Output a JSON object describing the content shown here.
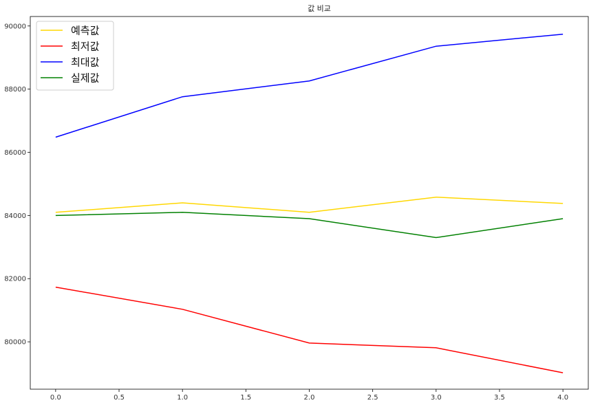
{
  "chart_data": {
    "type": "line",
    "title": "값 비교",
    "xlabel": "",
    "ylabel": "",
    "x": [
      0,
      1,
      2,
      3,
      4
    ],
    "xlim": [
      -0.2,
      4.2
    ],
    "ylim": [
      78500,
      90300
    ],
    "x_ticks": [
      0.0,
      0.5,
      1.0,
      1.5,
      2.0,
      2.5,
      3.0,
      3.5,
      4.0
    ],
    "x_tick_labels": [
      "0.0",
      "0.5",
      "1.0",
      "1.5",
      "2.0",
      "2.5",
      "3.0",
      "3.5",
      "4.0"
    ],
    "y_ticks": [
      80000,
      82000,
      84000,
      86000,
      88000,
      90000
    ],
    "y_tick_labels": [
      "80000",
      "82000",
      "84000",
      "86000",
      "88000",
      "90000"
    ],
    "grid": false,
    "legend_position": "top-left",
    "series": [
      {
        "name": "예측값",
        "color": "#ffd700",
        "values": [
          84100,
          84400,
          84100,
          84580,
          84380
        ]
      },
      {
        "name": "최저값",
        "color": "#ff0000",
        "values": [
          81730,
          81030,
          79960,
          79810,
          79020
        ]
      },
      {
        "name": "최대값",
        "color": "#0000ff",
        "values": [
          86480,
          87760,
          88260,
          89360,
          89740
        ]
      },
      {
        "name": "실제값",
        "color": "#008000",
        "values": [
          84000,
          84100,
          83900,
          83300,
          83900
        ]
      }
    ]
  }
}
